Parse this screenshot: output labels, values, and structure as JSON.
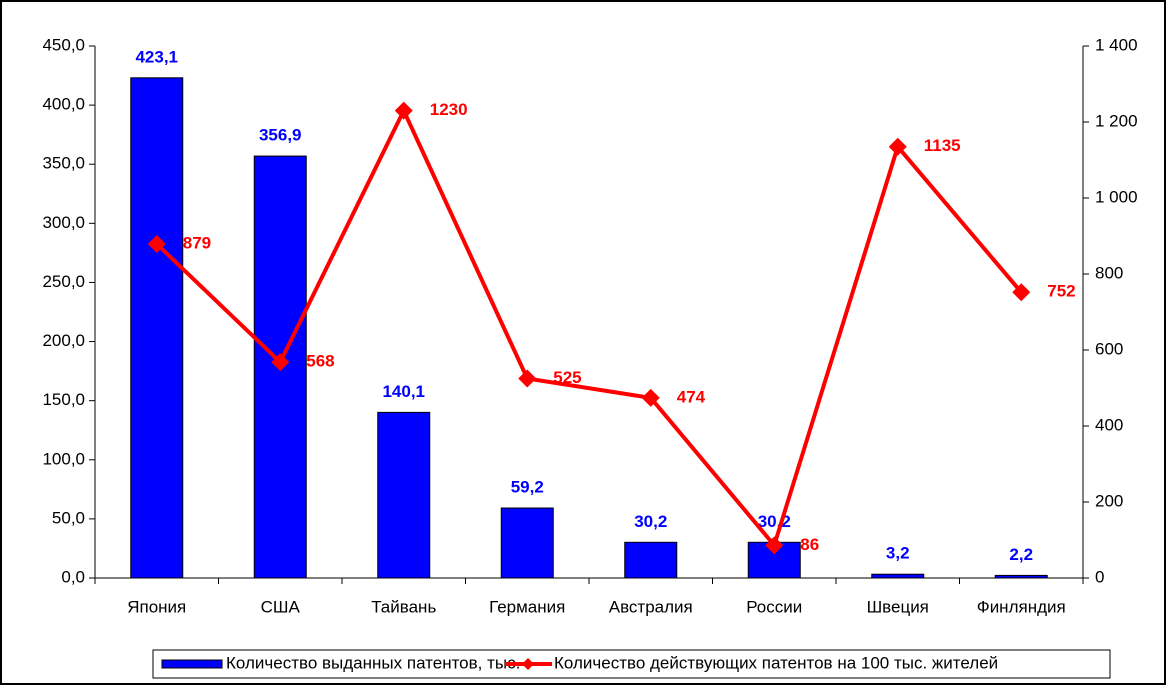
{
  "chart_data": {
    "type": "bar",
    "categories": [
      "Япония",
      "США",
      "Тайвань",
      "Германия",
      "Австралия",
      "России",
      "Швеция",
      "Финляндия"
    ],
    "series": [
      {
        "name": "Количество выданных патентов, тыс.",
        "color": "#0000ff",
        "type": "bar",
        "values": [
          423.1,
          356.9,
          140.1,
          59.2,
          30.2,
          30.2,
          3.2,
          2.2
        ],
        "value_labels": [
          "423,1",
          "356,9",
          "140,1",
          "59,2",
          "30,2",
          "30,2",
          "3,2",
          "2,2"
        ]
      },
      {
        "name": "Количество действующих патентов на 100 тыс. жителей",
        "color": "#ff0000",
        "type": "line",
        "axis": "y2",
        "values": [
          879,
          568,
          1230,
          525,
          474,
          86,
          1135,
          752
        ]
      }
    ],
    "ylim": [
      0,
      450
    ],
    "yticks": [
      {
        "value": 0,
        "label": "0,0"
      },
      {
        "value": 50,
        "label": "50,0"
      },
      {
        "value": 100,
        "label": "100,0"
      },
      {
        "value": 150,
        "label": "150,0"
      },
      {
        "value": 200,
        "label": "200,0"
      },
      {
        "value": 250,
        "label": "250,0"
      },
      {
        "value": 300,
        "label": "300,0"
      },
      {
        "value": 350,
        "label": "350,0"
      },
      {
        "value": 400,
        "label": "400,0"
      },
      {
        "value": 450,
        "label": "450,0"
      }
    ],
    "y2lim": [
      0,
      1400
    ],
    "y2ticks": [
      0,
      200,
      400,
      600,
      800,
      {
        "value": 1000,
        "label": "1 000"
      },
      {
        "value": 1200,
        "label": "1 200"
      },
      {
        "value": 1400,
        "label": "1 400"
      }
    ],
    "legend": "bottom"
  }
}
